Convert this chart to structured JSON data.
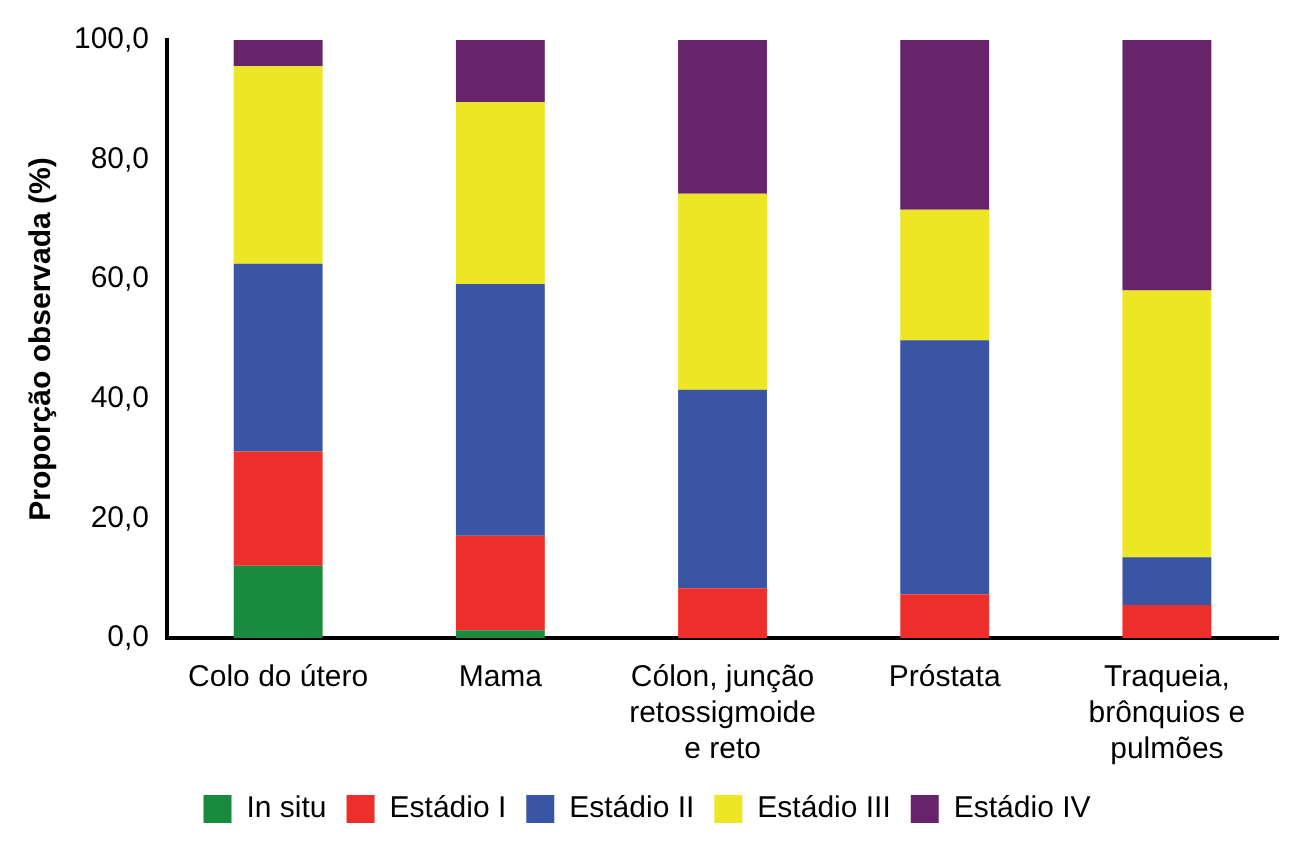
{
  "chart_data": {
    "type": "bar",
    "stacked": true,
    "ylabel": "Proporção observada (%)",
    "categories": [
      "Colo do útero",
      "Mama",
      "Cólon, junção retossigmoide e reto",
      "Próstata",
      "Traqueia, brônquios e pulmões"
    ],
    "series": [
      {
        "name": "In situ",
        "color": "#1a8a3e",
        "values": [
          12.1,
          1.3,
          0,
          0,
          0
        ]
      },
      {
        "name": "Estádio I",
        "color": "#ee2e2a",
        "values": [
          19.1,
          15.8,
          8.3,
          7.3,
          5.5
        ]
      },
      {
        "name": "Estádio II",
        "color": "#3a55a4",
        "values": [
          31.4,
          42.1,
          33.2,
          42.5,
          8.0
        ]
      },
      {
        "name": "Estádio III",
        "color": "#ece624",
        "values": [
          33.0,
          30.4,
          32.8,
          21.8,
          44.6
        ]
      },
      {
        "name": "Estádio IV",
        "color": "#68246b",
        "values": [
          4.4,
          10.4,
          25.7,
          28.4,
          41.9
        ]
      }
    ],
    "ylim": [
      0,
      100
    ],
    "yticks": [
      {
        "value": 0,
        "label": "0,0"
      },
      {
        "value": 20,
        "label": "20,0"
      },
      {
        "value": 40,
        "label": "40,0"
      },
      {
        "value": 60,
        "label": "60,0"
      },
      {
        "value": 80,
        "label": "80,0"
      },
      {
        "value": 100,
        "label": "100,0"
      }
    ],
    "grid": false,
    "legend": "bottom"
  }
}
